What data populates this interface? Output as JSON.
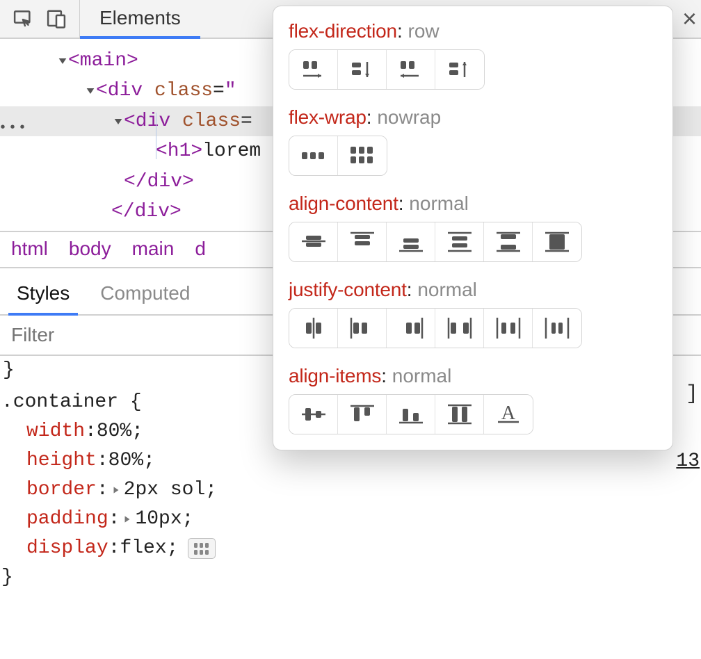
{
  "toolbar": {
    "active_tab_label": "Elements"
  },
  "dom": {
    "lines": [
      {
        "indent": 76,
        "arrow": true,
        "html": "<span class='tw'>&lt;main&gt;</span>"
      },
      {
        "indent": 116,
        "arrow": true,
        "html": "<span class='tw'>&lt;div</span> <span class='an'>class</span>=<span class='tw'>\"</span>"
      },
      {
        "indent": 156,
        "arrow": true,
        "selected": true,
        "html": "<span class='tw'>&lt;div</span> <span class='an'>class</span>="
      },
      {
        "indent": 202,
        "arrow": false,
        "guide": true,
        "html": "<span class='tw'>&lt;h1&gt;</span><span class='txt'>lorem</span>"
      },
      {
        "indent": 156,
        "arrow": false,
        "html": "<span class='tw'>&lt;/div&gt;</span>"
      },
      {
        "indent": 138,
        "arrow": false,
        "html": "<span class='tw'>&lt;/div&gt;</span>"
      }
    ]
  },
  "breadcrumbs": [
    "html",
    "body",
    "main",
    "d"
  ],
  "subtabs": {
    "items": [
      "Styles",
      "Computed"
    ],
    "active_index": 0
  },
  "filter": {
    "placeholder": "Filter"
  },
  "rule": {
    "selector": ".container",
    "open_brace": " {",
    "decls": [
      {
        "prop": "width",
        "value": "80%",
        "expand": false
      },
      {
        "prop": "height",
        "value": "80%",
        "expand": false
      },
      {
        "prop": "border",
        "value": "2px sol",
        "expand": true
      },
      {
        "prop": "padding",
        "value": "10px",
        "expand": true
      },
      {
        "prop": "display",
        "value": "flex",
        "expand": false,
        "swatch": true
      }
    ],
    "close_brace": "}"
  },
  "peek": {
    "num": "13",
    "bracket": "]"
  },
  "flex_editor": {
    "sections": [
      {
        "key": "flex-direction",
        "value": "row",
        "button_count": 4
      },
      {
        "key": "flex-wrap",
        "value": "nowrap",
        "button_count": 2
      },
      {
        "key": "align-content",
        "value": "normal",
        "button_count": 6
      },
      {
        "key": "justify-content",
        "value": "normal",
        "button_count": 6
      },
      {
        "key": "align-items",
        "value": "normal",
        "button_count": 5
      }
    ]
  },
  "colors": {
    "tag": "#8c1d9a",
    "attr": "#a0522d",
    "css_property": "#c3271a",
    "value_gray": "#8a8a8a",
    "accent": "#3e7bf5"
  }
}
